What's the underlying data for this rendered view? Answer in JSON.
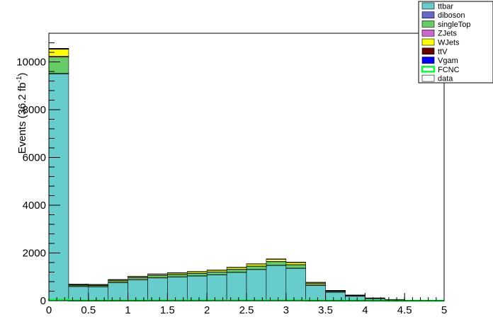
{
  "chart_data": {
    "type": "bar",
    "stacked": true,
    "ylabel_main": "Events (36.2 fb",
    "ylabel_sup": "-1",
    "ylabel_close": ")",
    "xlabel": "",
    "xlim": [
      0,
      5
    ],
    "ylim": [
      0,
      11200
    ],
    "x_ticks": [
      0,
      0.5,
      1,
      1.5,
      2,
      2.5,
      3,
      3.5,
      4,
      4.5,
      5
    ],
    "x_tick_labels": [
      "0",
      "0.5",
      "1",
      "1.5",
      "2",
      "2.5",
      "3",
      "3.5",
      "4",
      "4.5",
      "5"
    ],
    "y_ticks": [
      0,
      2000,
      4000,
      6000,
      8000,
      10000
    ],
    "y_tick_labels": [
      "0",
      "2000",
      "4000",
      "6000",
      "8000",
      "10000"
    ],
    "grid": false,
    "legend_position": "top-right",
    "bin_edges": [
      0,
      0.25,
      0.5,
      0.75,
      1.0,
      1.25,
      1.5,
      1.75,
      2.0,
      2.25,
      2.5,
      2.75,
      3.0,
      3.25,
      3.5,
      3.75,
      4.0,
      4.25,
      4.5,
      4.75,
      5.0
    ],
    "series": [
      {
        "name": "ttbar",
        "color": "#66cdcc",
        "values": [
          9500,
          600,
          590,
          760,
          880,
          960,
          1000,
          1040,
          1090,
          1190,
          1310,
          1480,
          1360,
          640,
          360,
          200,
          95,
          45,
          15,
          5
        ]
      },
      {
        "name": "diboson",
        "color": "#6666cc",
        "values": [
          20,
          3,
          3,
          4,
          4,
          5,
          5,
          5,
          5,
          6,
          6,
          6,
          5,
          3,
          2,
          1,
          1,
          0,
          0,
          0
        ]
      },
      {
        "name": "singleTop",
        "color": "#66cc66",
        "values": [
          680,
          50,
          50,
          70,
          80,
          90,
          95,
          100,
          105,
          115,
          130,
          150,
          140,
          70,
          40,
          22,
          12,
          6,
          2,
          1
        ]
      },
      {
        "name": "ZJets",
        "color": "#cc66cc",
        "values": [
          40,
          4,
          4,
          5,
          6,
          6,
          7,
          7,
          8,
          8,
          9,
          10,
          9,
          5,
          3,
          2,
          1,
          0,
          0,
          0
        ]
      },
      {
        "name": "WJets",
        "color": "#ffff00",
        "values": [
          290,
          30,
          30,
          40,
          45,
          50,
          55,
          60,
          65,
          70,
          80,
          90,
          85,
          45,
          25,
          14,
          7,
          3,
          1,
          0
        ]
      },
      {
        "name": "ttV",
        "color": "#660000",
        "values": [
          30,
          5,
          5,
          7,
          8,
          9,
          9,
          10,
          10,
          11,
          12,
          14,
          13,
          7,
          4,
          2,
          1,
          0,
          0,
          0
        ]
      },
      {
        "name": "Vgam",
        "color": "#0000ff",
        "values": [
          8,
          1,
          1,
          2,
          2,
          2,
          2,
          2,
          2,
          3,
          3,
          3,
          3,
          2,
          1,
          0,
          0,
          0,
          0,
          0
        ]
      }
    ],
    "fcnc": {
      "name": "FCNC",
      "color": "#00ff33",
      "values": [
        40,
        6,
        6,
        8,
        9,
        10,
        11,
        12,
        13,
        14,
        15,
        16,
        14,
        8,
        5,
        3,
        2,
        1,
        0,
        0
      ]
    },
    "data_entry": {
      "name": "data",
      "color": "#ffffff"
    }
  }
}
